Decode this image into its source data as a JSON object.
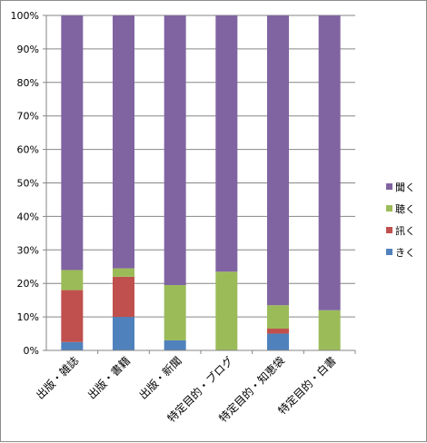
{
  "chart_data": {
    "type": "bar",
    "stacked": true,
    "title": "",
    "xlabel": "",
    "ylabel": "",
    "ylim": [
      0,
      100
    ],
    "yticks": [
      "0%",
      "10%",
      "20%",
      "30%",
      "40%",
      "50%",
      "60%",
      "70%",
      "80%",
      "90%",
      "100%"
    ],
    "grid": true,
    "legend_position": "right",
    "categories": [
      "出版・雑誌",
      "出版・書籍",
      "出版・新聞",
      "特定目的・ブログ",
      "特定目的・知恵袋",
      "特定目的・白書"
    ],
    "series": [
      {
        "name": "きく",
        "color": "#4f81bd",
        "values": [
          2.5,
          10,
          3,
          0,
          5,
          0
        ]
      },
      {
        "name": "訊く",
        "color": "#c0504d",
        "values": [
          15.5,
          12,
          0,
          0,
          1.5,
          0
        ]
      },
      {
        "name": "聴く",
        "color": "#9bbb59",
        "values": [
          6,
          2.5,
          16.5,
          23.5,
          7,
          12
        ]
      },
      {
        "name": "聞く",
        "color": "#8064a2",
        "values": [
          76,
          75.5,
          80.5,
          76.5,
          86.5,
          88
        ]
      }
    ]
  }
}
